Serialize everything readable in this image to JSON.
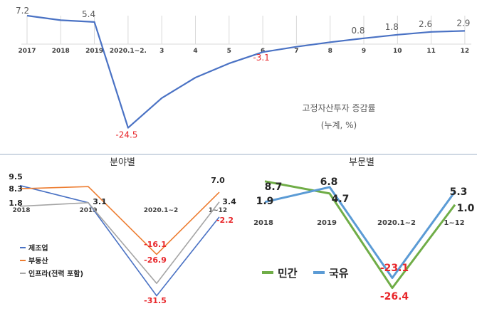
{
  "colors": {
    "top_line": "#4a72c4",
    "negative": "#e8262a",
    "label": "#595959",
    "bottom_band": "#dfe6ee",
    "manufacturing": "#4a72c4",
    "real_estate": "#ed7d31",
    "infrastructure": "#a5a5a5",
    "private": "#70ad47",
    "state": "#5b9bd5"
  },
  "chart_data": [
    {
      "type": "line",
      "title": "고정자산투자 증감률",
      "subtitle": "(누계, %)",
      "categories": [
        "2017",
        "2018",
        "2019",
        "2020.1~2.",
        "3",
        "4",
        "5",
        "6",
        "7",
        "8",
        "9",
        "10",
        "11",
        "12"
      ],
      "series": [
        {
          "values": [
            7.2,
            5.9,
            5.4,
            -24.5,
            -16.1,
            -10.3,
            -6.3,
            -3.1,
            -1.6,
            -0.3,
            0.8,
            1.8,
            2.6,
            2.9
          ]
        }
      ],
      "data_labels": [
        {
          "index": 0,
          "text": "7.2"
        },
        {
          "index": 2,
          "text": "5.4"
        },
        {
          "index": 3,
          "text": "-24.5"
        },
        {
          "index": 7,
          "text": "-3.1"
        },
        {
          "index": 10,
          "text": "0.8"
        },
        {
          "index": 11,
          "text": "1.8"
        },
        {
          "index": 12,
          "text": "2.6"
        },
        {
          "index": 13,
          "text": "2.9"
        }
      ],
      "ylim": [
        -27,
        8
      ],
      "grid": "vertical"
    },
    {
      "type": "line",
      "title": "분야별",
      "categories": [
        "2018",
        "2019",
        "2020.1~2",
        "1~12"
      ],
      "series": [
        {
          "name": "제조업",
          "values": [
            9.5,
            3.1,
            -31.5,
            -2.2
          ]
        },
        {
          "name": "부동산",
          "values": [
            8.3,
            9.1,
            -16.1,
            7.0
          ]
        },
        {
          "name": "인프라(전력 포함)",
          "values": [
            1.8,
            3.1,
            -26.9,
            3.4
          ]
        }
      ],
      "data_labels": [
        "9.5",
        "8.3",
        "1.8",
        "3.1",
        "-16.1",
        "-26.9",
        "-31.5",
        "7.0",
        "3.4",
        "-2.2"
      ],
      "legend": "bottom-left",
      "ylim": [
        -34,
        11
      ]
    },
    {
      "type": "line",
      "title": "부문별",
      "categories": [
        "2018",
        "2019",
        "2020.1~2",
        "1~12"
      ],
      "series": [
        {
          "name": "민간",
          "values": [
            8.7,
            4.7,
            -26.4,
            1.0
          ]
        },
        {
          "name": "국유",
          "values": [
            1.9,
            6.8,
            -23.1,
            5.3
          ]
        }
      ],
      "data_labels": [
        "8.7",
        "1.9",
        "6.8",
        "4.7",
        "-23.1",
        "-26.4",
        "5.3",
        "1.0"
      ],
      "legend": "bottom-left",
      "ylim": [
        -30,
        11
      ]
    }
  ]
}
